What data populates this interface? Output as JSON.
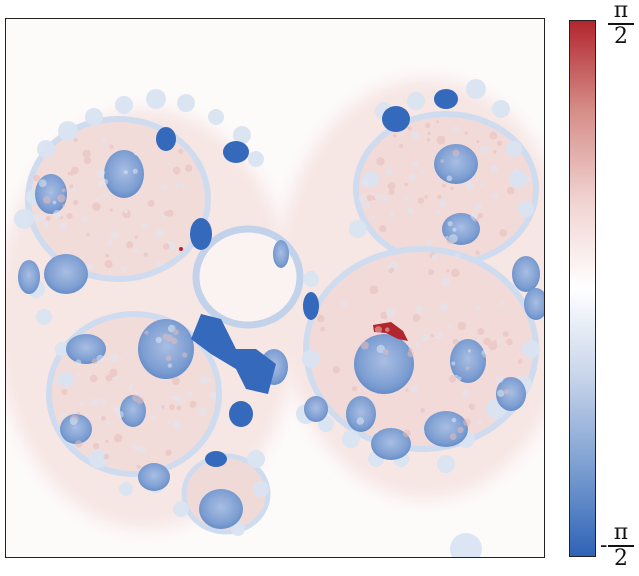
{
  "figure": {
    "image_description_id": "phase-map",
    "colormap": [
      "#2f63b7",
      "#7c9fd1",
      "#c7d4ea",
      "#ffffff",
      "#f0d2d0",
      "#d68d88",
      "#b2262e"
    ],
    "colorbar": {
      "max_label": {
        "numerator": "π",
        "denominator": "2",
        "sign": ""
      },
      "min_label": {
        "numerator": "π",
        "denominator": "2",
        "sign": "-"
      }
    }
  }
}
